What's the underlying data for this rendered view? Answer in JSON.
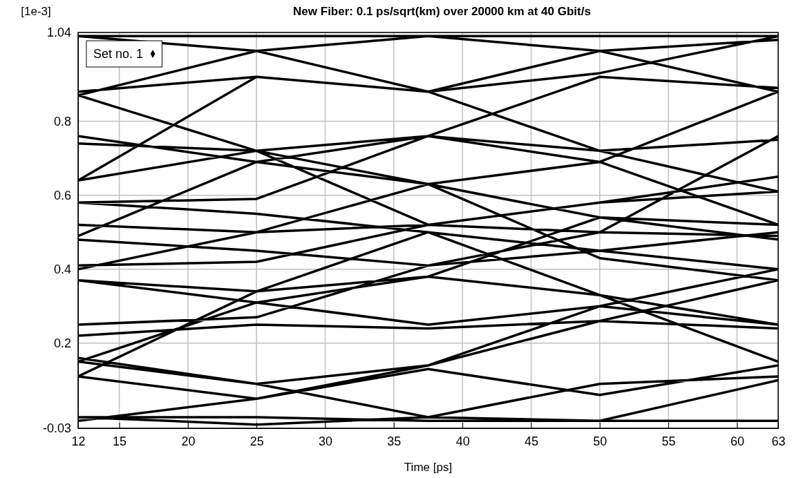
{
  "chart_data": {
    "type": "line",
    "title": "New Fiber:  0.1 ps/sqrt(km) over 20000 km at 40 Gbit/s",
    "xlabel": "Time [ps]",
    "ylabel": "[1e-3]",
    "xlim": [
      12,
      63
    ],
    "xticks": [
      12,
      15,
      20,
      25,
      30,
      35,
      40,
      45,
      50,
      55,
      60,
      63
    ],
    "ylim": [
      -0.03,
      1.04
    ],
    "yticks": [
      -0.03,
      0.2,
      0.4,
      0.6,
      0.8,
      1.04
    ],
    "grid": true,
    "legend": "top left",
    "series": [
      {
        "name": "Set no. 1",
        "color": "#000000",
        "x": [
          12,
          25,
          37.5,
          50,
          63,
          null,
          12,
          25,
          37.5,
          50,
          63,
          null,
          12,
          25,
          37.5,
          50,
          63,
          null,
          12,
          25,
          37.5,
          50,
          63,
          null,
          12,
          25,
          37.5,
          50,
          63,
          null,
          12,
          25,
          37.5,
          50,
          63,
          null,
          12,
          25,
          37.5,
          50,
          63,
          null,
          12,
          25,
          37.5,
          50,
          63,
          null,
          12,
          25,
          37.5,
          50,
          63,
          null,
          12,
          25,
          37.5,
          50,
          63,
          null,
          12,
          25,
          37.5,
          50,
          63,
          null,
          12,
          25,
          37.5,
          50,
          63,
          null,
          12,
          25,
          37.5,
          50,
          63,
          null,
          12,
          25,
          37.5,
          50,
          63,
          null,
          12,
          25,
          37.5,
          50,
          63,
          null,
          12,
          25,
          37.5,
          50,
          63,
          null,
          12,
          25,
          37.5,
          50,
          63,
          null,
          12,
          25,
          37.5,
          50,
          63,
          null,
          12,
          25,
          37.5,
          50,
          63,
          null,
          12,
          25,
          37.5,
          50,
          63,
          null,
          12,
          25,
          37.5,
          50,
          63,
          null,
          12,
          25,
          37.5,
          50,
          63,
          null,
          12,
          25,
          37.5,
          50,
          63,
          null,
          12,
          25,
          37.5,
          50,
          63,
          null,
          12,
          25,
          37.5,
          50,
          63,
          null,
          12,
          25,
          37.5,
          50,
          63,
          null,
          12,
          25,
          37.5,
          50,
          63,
          null,
          12,
          25,
          37.5,
          50,
          63
        ],
        "values": [
          1.03,
          1.03,
          1.03,
          1.03,
          1.03,
          null,
          0.87,
          0.99,
          1.03,
          0.99,
          0.88,
          null,
          1.03,
          0.99,
          0.88,
          0.93,
          1.03,
          null,
          0.88,
          0.92,
          0.88,
          0.99,
          1.02,
          null,
          0.87,
          0.72,
          0.63,
          0.69,
          0.88,
          null,
          0.76,
          0.69,
          0.76,
          0.72,
          0.61,
          null,
          0.74,
          0.72,
          0.76,
          0.92,
          0.89,
          null,
          0.64,
          0.92,
          0.88,
          0.72,
          0.75,
          null,
          0.64,
          0.72,
          0.52,
          0.58,
          0.65,
          null,
          0.58,
          0.59,
          0.76,
          0.69,
          0.52,
          null,
          0.58,
          0.55,
          0.5,
          0.45,
          0.5,
          null,
          0.52,
          0.5,
          0.52,
          0.5,
          0.49,
          null,
          0.49,
          0.69,
          0.63,
          0.54,
          0.48,
          null,
          0.48,
          0.45,
          0.41,
          0.5,
          0.76,
          null,
          0.41,
          0.42,
          0.52,
          0.58,
          0.61,
          null,
          0.4,
          0.5,
          0.63,
          0.43,
          0.37,
          null,
          0.37,
          0.31,
          0.25,
          0.3,
          0.4,
          null,
          0.37,
          0.34,
          0.38,
          0.33,
          0.25,
          null,
          0.25,
          0.27,
          0.41,
          0.45,
          0.4,
          null,
          0.22,
          0.25,
          0.24,
          0.26,
          0.24,
          null,
          0.15,
          0.31,
          0.38,
          0.54,
          0.52,
          null,
          0.11,
          0.34,
          0.5,
          0.33,
          0.15,
          null,
          0.16,
          0.09,
          0.14,
          0.26,
          0.37,
          null,
          0.11,
          0.05,
          0.13,
          0.06,
          0.14,
          null,
          0.15,
          0.09,
          0.0,
          0.09,
          0.11,
          null,
          0.0,
          -0.02,
          0.0,
          -0.01,
          0.1,
          null,
          -0.01,
          0.05,
          0.14,
          0.3,
          0.25,
          null,
          0.0,
          0.0,
          -0.01,
          -0.01,
          -0.01
        ]
      }
    ]
  }
}
